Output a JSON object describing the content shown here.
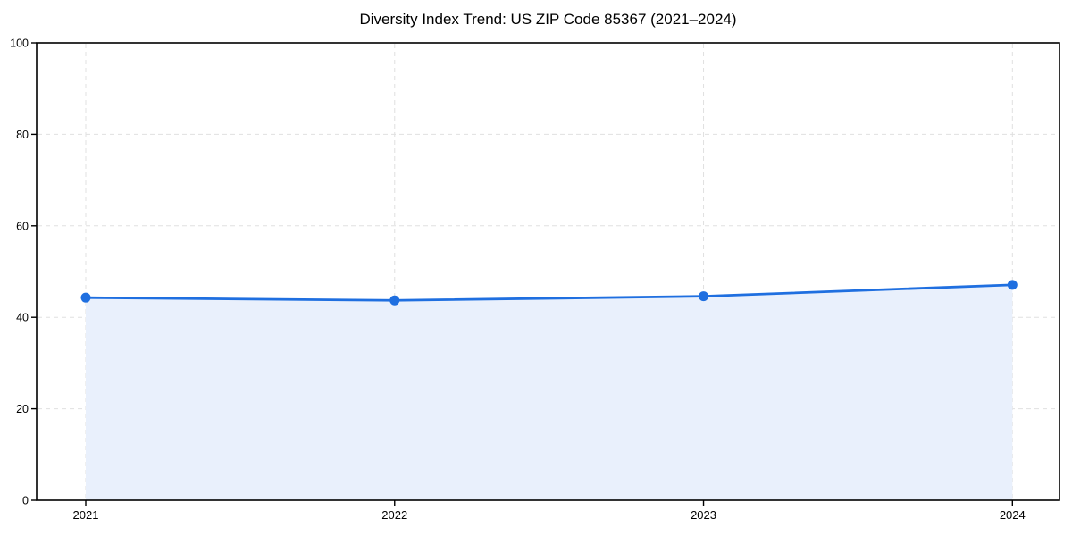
{
  "page": {
    "background": "#ffffff"
  },
  "colors": {
    "line": "#1f6fe0",
    "marker": "#1f6fe0",
    "area_fill": "#e9f0fc",
    "grid": "#e0e0e0",
    "axis": "#000000",
    "text": "#000000"
  },
  "chart_data": {
    "type": "area",
    "title": "Diversity Index Trend: US ZIP Code 85367 (2021–2024)",
    "xlabel": "",
    "ylabel": "",
    "categories": [
      "2021",
      "2022",
      "2023",
      "2024"
    ],
    "series": [
      {
        "name": "Diversity Index",
        "values": [
          44.3,
          43.7,
          44.6,
          47.1
        ]
      }
    ],
    "ylim": [
      0,
      100
    ],
    "yticks": [
      0,
      20,
      40,
      60,
      80,
      100
    ],
    "grid": "dashed-both-axes",
    "legend_position": "none",
    "marker": "circle"
  }
}
